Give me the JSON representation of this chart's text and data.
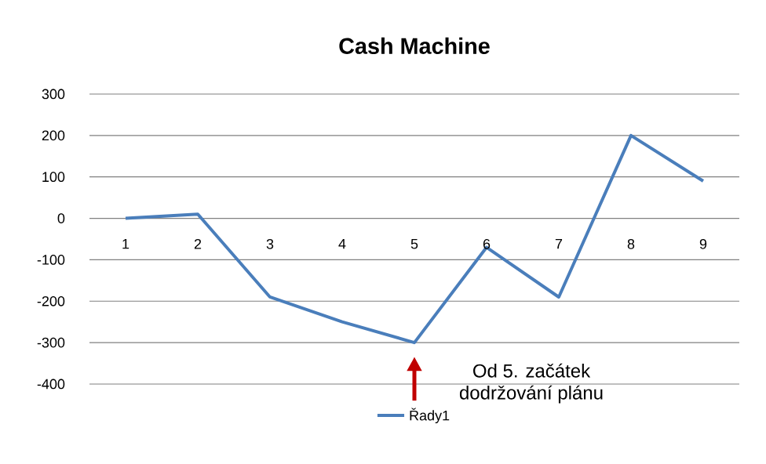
{
  "chart_data": {
    "type": "line",
    "title": "Cash Machine",
    "categories": [
      "1",
      "2",
      "3",
      "4",
      "5",
      "6",
      "7",
      "8",
      "9"
    ],
    "series": [
      {
        "name": "Řady1",
        "color": "#4a7ebb",
        "values": [
          0,
          10,
          -190,
          -250,
          -300,
          -70,
          -190,
          200,
          90
        ]
      }
    ],
    "ylim": [
      -400,
      300
    ],
    "yticks": [
      -400,
      -300,
      -200,
      -100,
      0,
      100,
      200,
      300
    ],
    "grid": "y",
    "legend": "bottom",
    "marker": "none",
    "line_style": "solid",
    "annotations": [
      "Od 5. začátek dodržování plánu"
    ]
  }
}
